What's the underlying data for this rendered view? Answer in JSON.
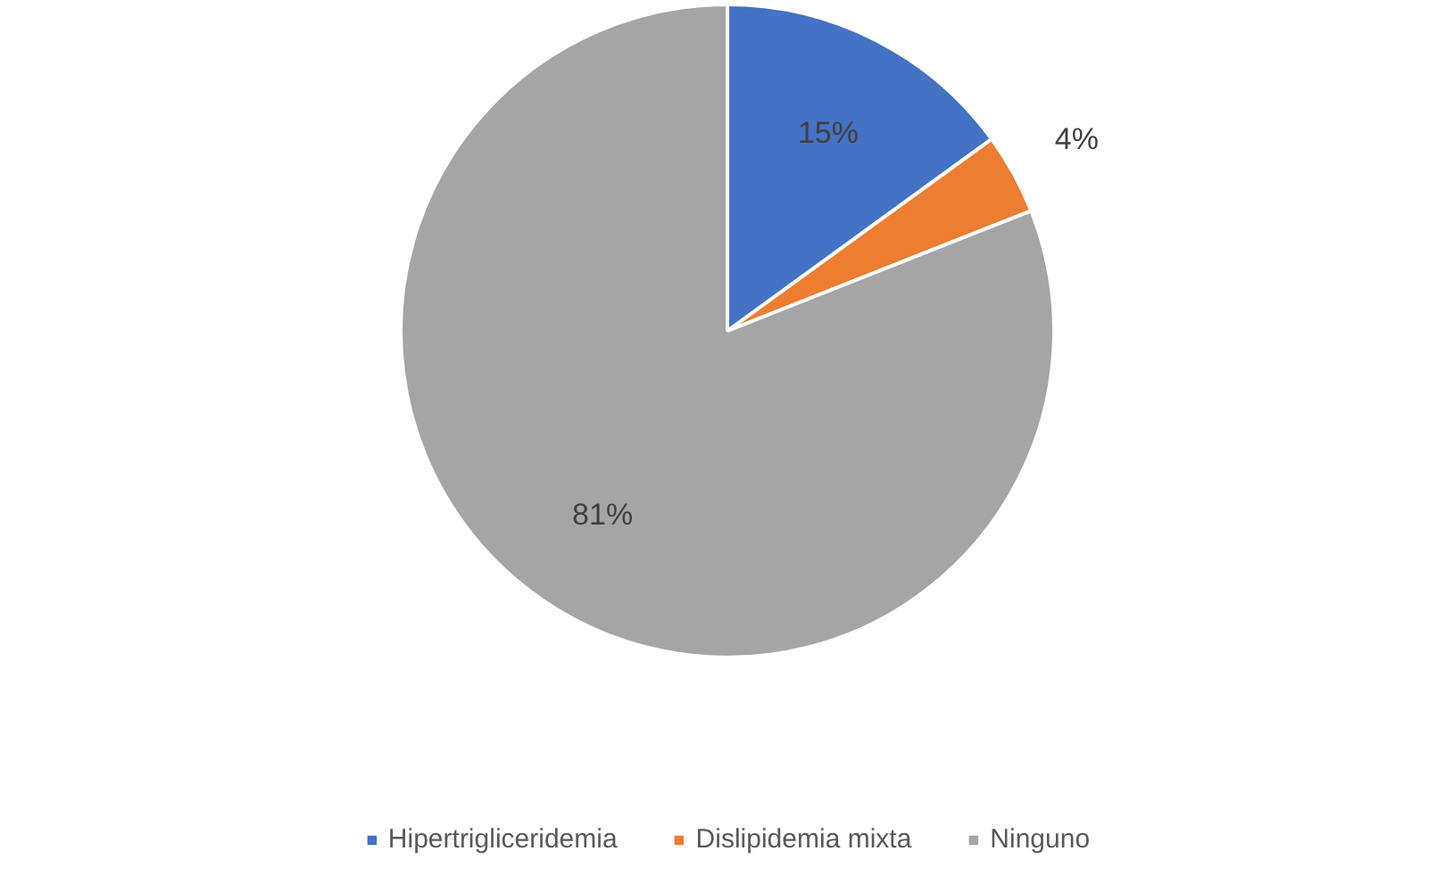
{
  "chart_data": {
    "type": "pie",
    "categories": [
      "Hipertrigliceridemia",
      "Dislipidemia mixta",
      "Ninguno"
    ],
    "values": [
      15,
      4,
      81
    ],
    "colors": [
      "#4472c4",
      "#ed7d31",
      "#a5a5a5"
    ],
    "value_labels": [
      "15%",
      "4%",
      "81%"
    ],
    "legend": "bottom"
  }
}
